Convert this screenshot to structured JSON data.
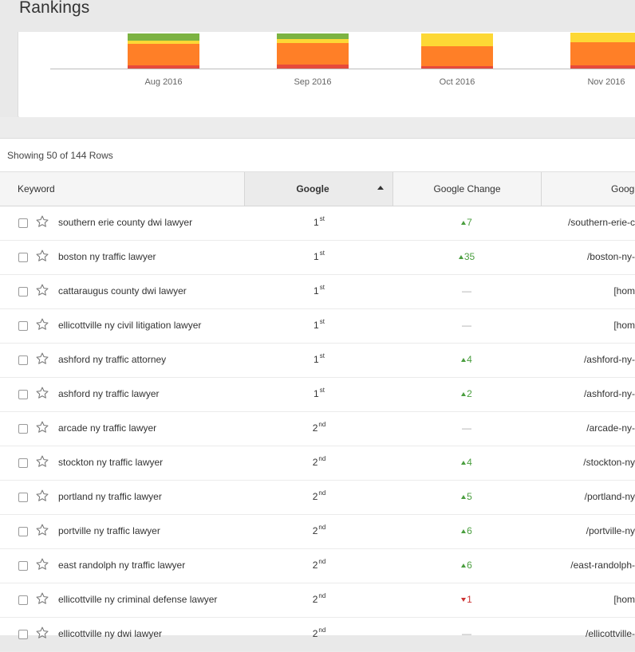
{
  "page": {
    "title": "Rankings"
  },
  "colors": {
    "green": "#7cb342",
    "yellow": "#fdd835",
    "orange": "#ff7f27",
    "red": "#e64a3b",
    "change_up": "#4a9e3f",
    "change_down": "#cc3333"
  },
  "chart_data": {
    "type": "bar",
    "stacked": true,
    "categories": [
      "Aug 2016",
      "Sep 2016",
      "Oct 2016",
      "Nov 2016"
    ],
    "note_visible": "bars cropped at top; only lower portions visible",
    "series": [
      {
        "color": "green",
        "values": [
          9,
          7,
          0,
          0
        ]
      },
      {
        "color": "yellow",
        "values": [
          4,
          5,
          16,
          12
        ]
      },
      {
        "color": "orange",
        "values": [
          27,
          27,
          25,
          29
        ]
      },
      {
        "color": "red",
        "values": [
          4,
          5,
          3,
          4
        ]
      }
    ]
  },
  "table": {
    "row_count_text": "Showing 50 of 144 Rows",
    "columns": {
      "keyword": "Keyword",
      "google": "Google",
      "google_change": "Google Change",
      "google_url": "Goog"
    },
    "rows": [
      {
        "keyword": "southern erie county dwi lawyer",
        "rank": "1",
        "suffix": "st",
        "change": "7",
        "dir": "up",
        "url": "/southern-erie-c"
      },
      {
        "keyword": "boston ny traffic lawyer",
        "rank": "1",
        "suffix": "st",
        "change": "35",
        "dir": "up",
        "url": "/boston-ny-"
      },
      {
        "keyword": "cattaraugus county dwi lawyer",
        "rank": "1",
        "suffix": "st",
        "change": "—",
        "dir": "none",
        "url": "[hom"
      },
      {
        "keyword": "ellicottville ny civil litigation lawyer",
        "rank": "1",
        "suffix": "st",
        "change": "—",
        "dir": "none",
        "url": "[hom"
      },
      {
        "keyword": "ashford ny traffic attorney",
        "rank": "1",
        "suffix": "st",
        "change": "4",
        "dir": "up",
        "url": "/ashford-ny-"
      },
      {
        "keyword": "ashford ny traffic lawyer",
        "rank": "1",
        "suffix": "st",
        "change": "2",
        "dir": "up",
        "url": "/ashford-ny-"
      },
      {
        "keyword": "arcade ny traffic lawyer",
        "rank": "2",
        "suffix": "nd",
        "change": "—",
        "dir": "none",
        "url": "/arcade-ny-"
      },
      {
        "keyword": "stockton ny traffic lawyer",
        "rank": "2",
        "suffix": "nd",
        "change": "4",
        "dir": "up",
        "url": "/stockton-ny"
      },
      {
        "keyword": "portland ny traffic lawyer",
        "rank": "2",
        "suffix": "nd",
        "change": "5",
        "dir": "up",
        "url": "/portland-ny"
      },
      {
        "keyword": "portville ny traffic lawyer",
        "rank": "2",
        "suffix": "nd",
        "change": "6",
        "dir": "up",
        "url": "/portville-ny"
      },
      {
        "keyword": "east randolph ny traffic lawyer",
        "rank": "2",
        "suffix": "nd",
        "change": "6",
        "dir": "up",
        "url": "/east-randolph-"
      },
      {
        "keyword": "ellicottville ny criminal defense lawyer",
        "rank": "2",
        "suffix": "nd",
        "change": "1",
        "dir": "down",
        "url": "[hom"
      },
      {
        "keyword": "ellicottville ny dwi lawyer",
        "rank": "2",
        "suffix": "nd",
        "change": "—",
        "dir": "none",
        "url": "/ellicottville-"
      }
    ]
  }
}
